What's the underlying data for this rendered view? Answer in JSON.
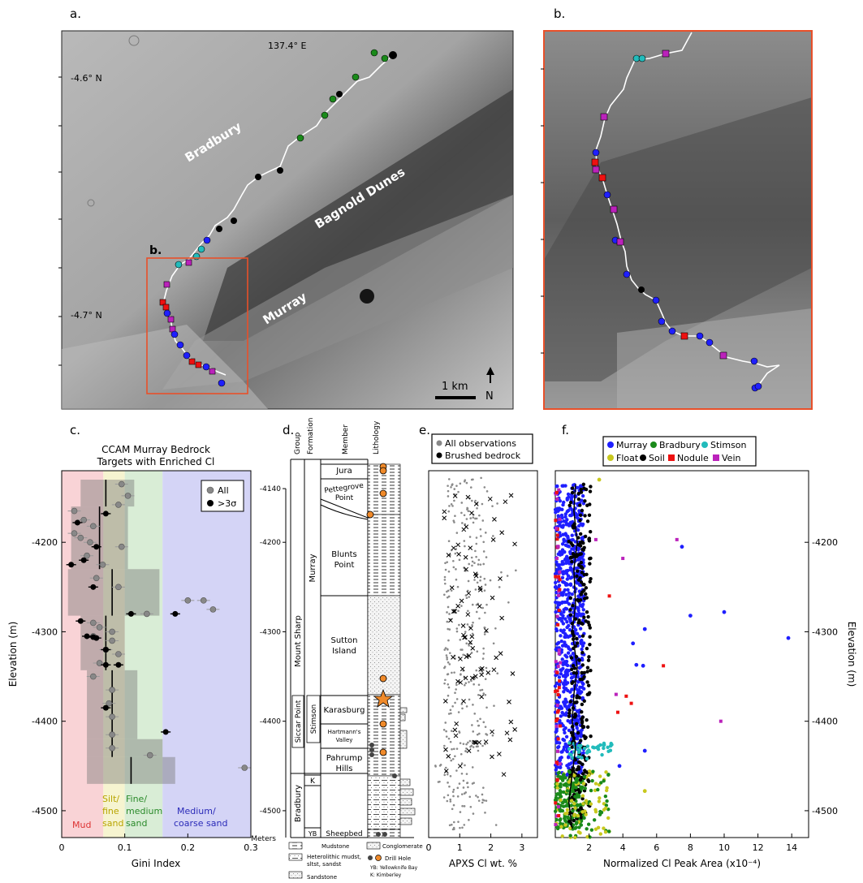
{
  "panels": {
    "a": {
      "letter": "a.",
      "lon_label": "137.4° E",
      "lat_top": "-4.6° N",
      "lat_bottom": "-4.7° N",
      "region_bradbury": "Bradbury",
      "region_bagnold": "Bagnold Dunes",
      "region_murray": "Murray",
      "inset_letter": "b.",
      "scale_label": "1 km",
      "north_label": "N"
    },
    "b": {
      "letter": "b."
    },
    "c": {
      "letter": "c.",
      "title_line1": "CCAM Murray Bedrock",
      "title_line2": "Targets with Enriched Cl",
      "legend_all": "All",
      "legend_sig": ">3σ",
      "xlabel": "Gini Index",
      "ylabel": "Elevation (m)",
      "zones": {
        "mud": "Mud",
        "silt_1": "Silt/",
        "silt_2": "fine",
        "silt_3": "sand",
        "fine_1": "Fine/",
        "fine_2": "medium",
        "fine_3": "sand",
        "coarse_1": "Medium/",
        "coarse_2": "coarse sand"
      }
    },
    "d": {
      "letter": "d.",
      "head_group": "Group",
      "head_formation": "Formation",
      "head_member": "Member",
      "head_lithology": "Lithology",
      "group_mount_sharp": "Mount Sharp",
      "group_bradbury": "Bradbury",
      "formation_murray": "Murray",
      "formation_siccar": "Siccar Point",
      "formation_stimson": "Stimson",
      "formation_k": "K",
      "formation_yb": "YB",
      "member_jura": "Jura",
      "member_pettegrove_1": "Pettegrove",
      "member_pettegrove_2": "Point",
      "member_blunts_1": "Blunts",
      "member_blunts_2": "Point",
      "member_sutton_1": "Sutton",
      "member_sutton_2": "Island",
      "member_karasburg": "Karasburg",
      "member_hartmann_1": "Hartmann's",
      "member_hartmann_2": "Valley",
      "member_pahrump_1": "Pahrump",
      "member_pahrump_2": "Hills",
      "member_sheepbed": "Sheepbed",
      "meters_label": "Meters",
      "legend_mudstone": "Mudstone",
      "legend_conglomerate": "Conglomerate",
      "legend_heterolithic_1": "Heterolithic mudst,",
      "legend_heterolithic_2": "sltst, sandst",
      "legend_drill": "Drill Hole",
      "legend_sandstone": "Sandstone",
      "legend_yb": "YB: Yellowknife Bay",
      "legend_k": "K: Kimberley"
    },
    "e": {
      "letter": "e.",
      "legend_all": "All observations",
      "legend_brushed": "Brushed bedrock",
      "xlabel": "APXS Cl wt. %"
    },
    "f": {
      "letter": "f.",
      "legend_murray": "Murray",
      "legend_bradbury": "Bradbury",
      "legend_stimson": "Stimson",
      "legend_float": "Float",
      "legend_soil": "Soil",
      "legend_nodule": "Nodule",
      "legend_vein": "Vein",
      "xlabel": "Normalized Cl Peak Area (x10⁻⁴)",
      "ylabel": "Elevation (m)"
    }
  },
  "colors": {
    "murray": "#1f1fff",
    "bradbury": "#1a8a1a",
    "stimson": "#22bbbb",
    "float": "#c8c81e",
    "soil": "#000000",
    "nodule": "#ee1111",
    "vein": "#bb22bb",
    "drill": "#f08a2a",
    "inset_frame": "#e8502a",
    "zone_mud": "#f7c8cc",
    "zone_silt": "#f4f1c4",
    "zone_fine": "#cfe8cc",
    "zone_coarse": "#c9c9f4"
  },
  "chart_data": [
    {
      "panel": "c",
      "type": "scatter",
      "title": "CCAM Murray Bedrock Targets with Enriched Cl",
      "xlabel": "Gini Index",
      "ylabel": "Elevation (m)",
      "xlim": [
        0,
        0.3
      ],
      "ylim": [
        -4530,
        -4120
      ],
      "xticks": [
        0,
        0.1,
        0.2,
        0.3
      ],
      "yticks": [
        -4200,
        -4300,
        -4400,
        -4500
      ],
      "zones": [
        {
          "name": "Mud",
          "from": 0,
          "to": 0.066
        },
        {
          "name": "Silt/fine sand",
          "from": 0.066,
          "to": 0.1
        },
        {
          "name": "Fine/medium sand",
          "from": 0.1,
          "to": 0.16
        },
        {
          "name": "Medium/coarse sand",
          "from": 0.16,
          "to": 0.3
        }
      ],
      "legend": "top-right",
      "series": [
        {
          "name": "All",
          "points": [
            [
              0.095,
              -4135
            ],
            [
              0.105,
              -4148
            ],
            [
              0.09,
              -4158
            ],
            [
              0.02,
              -4165
            ],
            [
              0.035,
              -4175
            ],
            [
              0.05,
              -4182
            ],
            [
              0.02,
              -4190
            ],
            [
              0.03,
              -4195
            ],
            [
              0.045,
              -4200
            ],
            [
              0.095,
              -4205
            ],
            [
              0.04,
              -4215
            ],
            [
              0.065,
              -4225
            ],
            [
              0.055,
              -4240
            ],
            [
              0.09,
              -4250
            ],
            [
              0.2,
              -4265
            ],
            [
              0.225,
              -4265
            ],
            [
              0.24,
              -4275
            ],
            [
              0.135,
              -4280
            ],
            [
              0.05,
              -4290
            ],
            [
              0.06,
              -4295
            ],
            [
              0.08,
              -4300
            ],
            [
              0.05,
              -4305
            ],
            [
              0.08,
              -4310
            ],
            [
              0.07,
              -4320
            ],
            [
              0.09,
              -4325
            ],
            [
              0.06,
              -4335
            ],
            [
              0.05,
              -4350
            ],
            [
              0.08,
              -4365
            ],
            [
              0.075,
              -4380
            ],
            [
              0.08,
              -4395
            ],
            [
              0.08,
              -4415
            ],
            [
              0.08,
              -4430
            ],
            [
              0.14,
              -4438
            ],
            [
              0.29,
              -4452
            ]
          ]
        },
        {
          "name": ">3σ",
          "points": [
            [
              0.07,
              -4168
            ],
            [
              0.025,
              -4178
            ],
            [
              0.055,
              -4205
            ],
            [
              0.035,
              -4220
            ],
            [
              0.015,
              -4225
            ],
            [
              0.05,
              -4250
            ],
            [
              0.11,
              -4280
            ],
            [
              0.18,
              -4280
            ],
            [
              0.03,
              -4288
            ],
            [
              0.04,
              -4305
            ],
            [
              0.05,
              -4306
            ],
            [
              0.055,
              -4307
            ],
            [
              0.07,
              -4320
            ],
            [
              0.07,
              -4337
            ],
            [
              0.09,
              -4337
            ],
            [
              0.07,
              -4385
            ],
            [
              0.165,
              -4412
            ]
          ]
        }
      ],
      "boxes": [
        {
          "y_from": -4130,
          "y_to": -4160,
          "x_from": 0.03,
          "x_to": 0.115,
          "median": 0.07
        },
        {
          "y_from": -4160,
          "y_to": -4230,
          "x_from": 0.015,
          "x_to": 0.105,
          "median": 0.06
        },
        {
          "y_from": -4230,
          "y_to": -4282,
          "x_from": 0.01,
          "x_to": 0.155,
          "median": 0.08
        },
        {
          "y_from": -4282,
          "y_to": -4343,
          "x_from": 0.03,
          "x_to": 0.1,
          "median": 0.07
        },
        {
          "y_from": -4343,
          "y_to": -4420,
          "x_from": 0.04,
          "x_to": 0.12,
          "median": 0.08
        },
        {
          "y_from": -4420,
          "y_to": -4440,
          "x_from": 0.04,
          "x_to": 0.16,
          "median": 0.08
        },
        {
          "y_from": -4440,
          "y_to": -4470,
          "x_from": 0.04,
          "x_to": 0.18,
          "median": 0.11
        }
      ]
    },
    {
      "panel": "e",
      "type": "scatter",
      "xlabel": "APXS Cl wt. %",
      "xlim": [
        0,
        3.5
      ],
      "ylim": [
        -4530,
        -4120
      ],
      "xticks": [
        0,
        1,
        2,
        3
      ],
      "legend": "top-left",
      "series": [
        {
          "name": "All observations",
          "x_range": [
            0.4,
            2.0
          ],
          "y_range": [
            -4520,
            -4140
          ]
        },
        {
          "name": "Brushed bedrock",
          "x_range": [
            0.5,
            2.8
          ],
          "y_range": [
            -4460,
            -4145
          ]
        }
      ]
    },
    {
      "panel": "f",
      "type": "scatter",
      "xlabel": "Normalized Cl Peak Area (x10⁻⁴)",
      "ylabel": "Elevation (m)",
      "xlim": [
        0,
        15
      ],
      "ylim": [
        -4530,
        -4120
      ],
      "xticks": [
        2,
        4,
        6,
        8,
        10,
        12,
        14
      ],
      "yticks": [
        -4200,
        -4300,
        -4400,
        -4500
      ],
      "legend": "top",
      "series": [
        {
          "name": "Murray",
          "sample_outliers": [
            [
              7.5,
              -4205
            ],
            [
              10,
              -4278
            ],
            [
              13.8,
              -4307
            ],
            [
              8,
              -4282
            ],
            [
              5.3,
              -4297
            ],
            [
              4.6,
              -4313
            ],
            [
              4.8,
              -4337
            ],
            [
              5.2,
              -4338
            ],
            [
              5.3,
              -4433
            ],
            [
              3.8,
              -4450
            ]
          ]
        },
        {
          "name": "Bradbury",
          "y_range": [
            -4530,
            -4460
          ]
        },
        {
          "name": "Stimson",
          "y_range": [
            -4440,
            -4425
          ]
        },
        {
          "name": "Float",
          "sample_outliers": [
            [
              2.6,
              -4130
            ],
            [
              5.3,
              -4478
            ]
          ]
        },
        {
          "name": "Soil",
          "y_range": [
            -4520,
            -4140
          ]
        },
        {
          "name": "Nodule",
          "sample_outliers": [
            [
              3.2,
              -4260
            ],
            [
              6.4,
              -4338
            ],
            [
              4.2,
              -4372
            ],
            [
              3.7,
              -4390
            ],
            [
              4.5,
              -4380
            ]
          ]
        },
        {
          "name": "Vein",
          "sample_outliers": [
            [
              7.2,
              -4197
            ],
            [
              2.4,
              -4197
            ],
            [
              4,
              -4218
            ],
            [
              9.8,
              -4400
            ],
            [
              3.6,
              -4370
            ]
          ]
        }
      ],
      "trend_line": [
        [
          1.2,
          -4135
        ],
        [
          1.1,
          -4165
        ],
        [
          1.3,
          -4200
        ],
        [
          1.1,
          -4230
        ],
        [
          1.2,
          -4270
        ],
        [
          1.0,
          -4300
        ],
        [
          1.3,
          -4340
        ],
        [
          1.1,
          -4370
        ],
        [
          1.0,
          -4400
        ],
        [
          1.2,
          -4430
        ],
        [
          1.0,
          -4460
        ],
        [
          0.8,
          -4490
        ],
        [
          1.0,
          -4520
        ]
      ]
    }
  ]
}
